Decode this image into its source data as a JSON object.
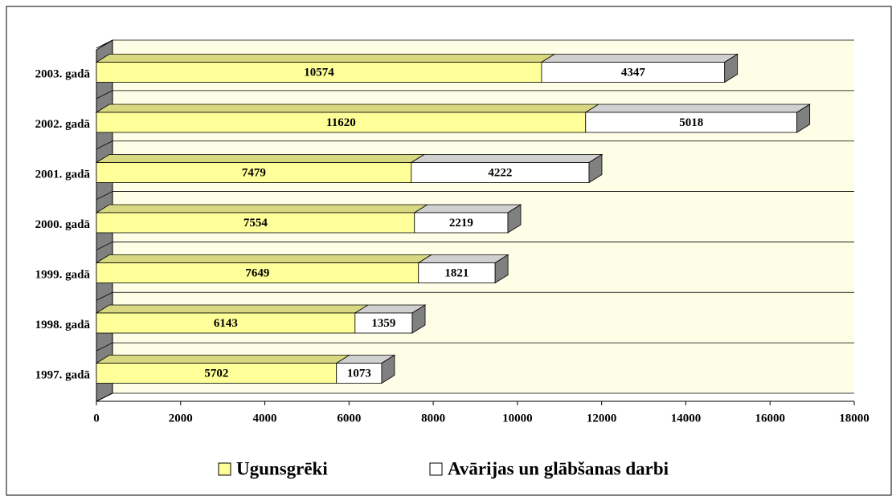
{
  "chart_data": {
    "type": "bar",
    "orientation": "horizontal",
    "stacked": true,
    "three_d": true,
    "categories": [
      "1997. gadā",
      "1998. gadā",
      "1999. gadā",
      "2000. gadā",
      "2001. gadā",
      "2002. gadā",
      "2003. gadā"
    ],
    "series": [
      {
        "name": "Ugunsgrēki",
        "color": "#ffff99",
        "values": [
          5702,
          6143,
          7649,
          7554,
          7479,
          11620,
          10574
        ]
      },
      {
        "name": "Avārijas un glābšanas darbi",
        "color": "#ffffff",
        "values": [
          1073,
          1359,
          1821,
          2219,
          4222,
          5018,
          4347
        ]
      }
    ],
    "xlim": [
      0,
      18000
    ],
    "xticks": [
      0,
      2000,
      4000,
      6000,
      8000,
      10000,
      12000,
      14000,
      16000,
      18000
    ],
    "grid": true,
    "legend": "bottom"
  }
}
